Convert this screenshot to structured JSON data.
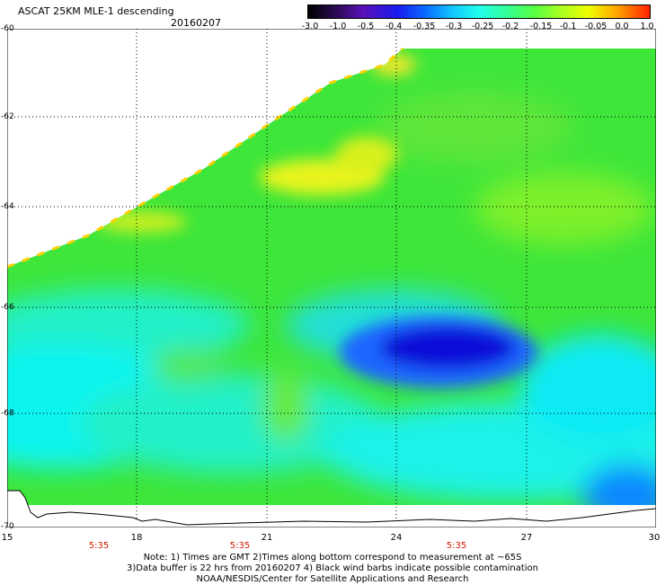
{
  "header": {
    "title": "ASCAT 25KM MLE-1 descending",
    "date": "20160207"
  },
  "colorbar": {
    "labels": [
      "-3.0",
      "-1.0",
      "-0.5",
      "-0.4",
      "-0.35",
      "-0.3",
      "-0.25",
      "-0.2",
      "-0.15",
      "-0.1",
      "-0.05",
      "0.0",
      "1.0"
    ]
  },
  "map": {
    "lat_labels": [
      "-60",
      "-62",
      "-64",
      "-66",
      "-68",
      "-70"
    ],
    "lon_labels": [
      "15",
      "18",
      "21",
      "24",
      "27",
      "30"
    ],
    "time_labels": [
      "5:35",
      "5:35",
      "5:35"
    ]
  },
  "footer": {
    "note_line1": "Note: 1) Times are GMT 2)Times along bottom correspond to measurement at ~65S",
    "note_line2": "3)Data buffer is 22 hrs from 20160207 4) Black wind barbs indicate possible contamination",
    "note_line3": "NOAA/NESDIS/Center for Satellite Applications and Research"
  }
}
